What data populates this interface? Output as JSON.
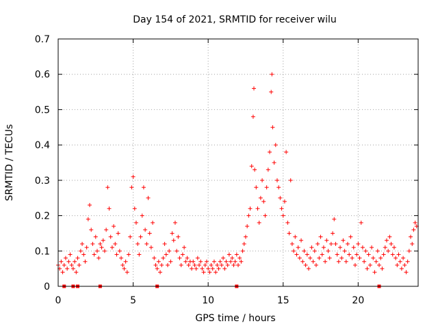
{
  "chart_data": {
    "type": "scatter",
    "title": "Day 154 of 2021, SRMTID for receiver wilu",
    "xlabel": "GPS time / hours",
    "ylabel": "SRMTID / TECUs",
    "xlim": [
      0,
      24
    ],
    "ylim": [
      0,
      0.7
    ],
    "xticks": [
      0,
      5,
      10,
      15,
      20
    ],
    "xtick_labels": [
      "0",
      "5",
      "10",
      "15",
      "20"
    ],
    "yticks": [
      0,
      0.1,
      0.2,
      0.3,
      0.4,
      0.5,
      0.6,
      0.7
    ],
    "ytick_labels": [
      "0",
      "0.1",
      "0.2",
      "0.3",
      "0.4",
      "0.5",
      "0.6",
      "0.7"
    ],
    "grid": true,
    "marker": "plus",
    "color": "#ff0000",
    "series": [
      {
        "name": "SRMTID",
        "points": [
          [
            0.0,
            0.06
          ],
          [
            0.1,
            0.05
          ],
          [
            0.2,
            0.07
          ],
          [
            0.3,
            0.04
          ],
          [
            0.4,
            0.06
          ],
          [
            0.5,
            0.08
          ],
          [
            0.6,
            0.05
          ],
          [
            0.7,
            0.07
          ],
          [
            0.8,
            0.09
          ],
          [
            0.9,
            0.06
          ],
          [
            1.0,
            0.05
          ],
          [
            1.1,
            0.07
          ],
          [
            1.2,
            0.04
          ],
          [
            1.3,
            0.08
          ],
          [
            1.4,
            0.06
          ],
          [
            1.5,
            0.1
          ],
          [
            1.6,
            0.12
          ],
          [
            1.7,
            0.09
          ],
          [
            1.8,
            0.07
          ],
          [
            1.9,
            0.11
          ],
          [
            2.0,
            0.19
          ],
          [
            2.1,
            0.23
          ],
          [
            2.2,
            0.16
          ],
          [
            2.3,
            0.12
          ],
          [
            2.4,
            0.09
          ],
          [
            2.5,
            0.14
          ],
          [
            2.6,
            0.1
          ],
          [
            2.7,
            0.08
          ],
          [
            2.8,
            0.12
          ],
          [
            2.9,
            0.11
          ],
          [
            3.0,
            0.13
          ],
          [
            3.1,
            0.1
          ],
          [
            3.2,
            0.16
          ],
          [
            3.3,
            0.28
          ],
          [
            3.4,
            0.22
          ],
          [
            3.5,
            0.14
          ],
          [
            3.6,
            0.11
          ],
          [
            3.7,
            0.17
          ],
          [
            3.8,
            0.12
          ],
          [
            3.9,
            0.09
          ],
          [
            4.0,
            0.15
          ],
          [
            4.1,
            0.1
          ],
          [
            4.2,
            0.08
          ],
          [
            4.3,
            0.06
          ],
          [
            4.4,
            0.05
          ],
          [
            4.5,
            0.07
          ],
          [
            4.6,
            0.04
          ],
          [
            4.7,
            0.09
          ],
          [
            4.8,
            0.14
          ],
          [
            4.9,
            0.28
          ],
          [
            5.0,
            0.31
          ],
          [
            5.1,
            0.22
          ],
          [
            5.2,
            0.18
          ],
          [
            5.3,
            0.12
          ],
          [
            5.4,
            0.09
          ],
          [
            5.5,
            0.14
          ],
          [
            5.6,
            0.2
          ],
          [
            5.7,
            0.28
          ],
          [
            5.8,
            0.16
          ],
          [
            5.9,
            0.12
          ],
          [
            6.0,
            0.25
          ],
          [
            6.1,
            0.15
          ],
          [
            6.2,
            0.11
          ],
          [
            6.3,
            0.18
          ],
          [
            6.4,
            0.08
          ],
          [
            6.5,
            0.06
          ],
          [
            6.6,
            0.05
          ],
          [
            6.7,
            0.07
          ],
          [
            6.8,
            0.04
          ],
          [
            6.9,
            0.06
          ],
          [
            7.0,
            0.08
          ],
          [
            7.1,
            0.12
          ],
          [
            7.2,
            0.09
          ],
          [
            7.3,
            0.06
          ],
          [
            7.4,
            0.1
          ],
          [
            7.5,
            0.07
          ],
          [
            7.6,
            0.15
          ],
          [
            7.7,
            0.13
          ],
          [
            7.8,
            0.18
          ],
          [
            7.9,
            0.1
          ],
          [
            8.0,
            0.14
          ],
          [
            8.1,
            0.08
          ],
          [
            8.2,
            0.06
          ],
          [
            8.3,
            0.09
          ],
          [
            8.4,
            0.11
          ],
          [
            8.5,
            0.07
          ],
          [
            8.6,
            0.08
          ],
          [
            8.7,
            0.06
          ],
          [
            8.8,
            0.07
          ],
          [
            8.9,
            0.05
          ],
          [
            9.0,
            0.07
          ],
          [
            9.1,
            0.06
          ],
          [
            9.2,
            0.05
          ],
          [
            9.3,
            0.08
          ],
          [
            9.4,
            0.06
          ],
          [
            9.5,
            0.07
          ],
          [
            9.6,
            0.05
          ],
          [
            9.7,
            0.04
          ],
          [
            9.8,
            0.06
          ],
          [
            9.9,
            0.07
          ],
          [
            10.0,
            0.05
          ],
          [
            10.1,
            0.04
          ],
          [
            10.2,
            0.06
          ],
          [
            10.3,
            0.05
          ],
          [
            10.4,
            0.07
          ],
          [
            10.5,
            0.04
          ],
          [
            10.6,
            0.06
          ],
          [
            10.7,
            0.05
          ],
          [
            10.8,
            0.07
          ],
          [
            10.9,
            0.06
          ],
          [
            11.0,
            0.08
          ],
          [
            11.1,
            0.05
          ],
          [
            11.2,
            0.07
          ],
          [
            11.3,
            0.06
          ],
          [
            11.4,
            0.09
          ],
          [
            11.5,
            0.07
          ],
          [
            11.6,
            0.08
          ],
          [
            11.7,
            0.06
          ],
          [
            11.8,
            0.07
          ],
          [
            11.9,
            0.09
          ],
          [
            12.0,
            0.06
          ],
          [
            12.1,
            0.08
          ],
          [
            12.2,
            0.07
          ],
          [
            12.3,
            0.1
          ],
          [
            12.4,
            0.12
          ],
          [
            12.5,
            0.14
          ],
          [
            12.6,
            0.17
          ],
          [
            12.7,
            0.2
          ],
          [
            12.8,
            0.22
          ],
          [
            12.9,
            0.34
          ],
          [
            13.0,
            0.48
          ],
          [
            13.05,
            0.56
          ],
          [
            13.1,
            0.33
          ],
          [
            13.2,
            0.28
          ],
          [
            13.3,
            0.22
          ],
          [
            13.4,
            0.18
          ],
          [
            13.5,
            0.25
          ],
          [
            13.6,
            0.3
          ],
          [
            13.7,
            0.24
          ],
          [
            13.8,
            0.2
          ],
          [
            13.9,
            0.28
          ],
          [
            14.0,
            0.33
          ],
          [
            14.1,
            0.38
          ],
          [
            14.2,
            0.55
          ],
          [
            14.25,
            0.6
          ],
          [
            14.3,
            0.45
          ],
          [
            14.4,
            0.35
          ],
          [
            14.5,
            0.4
          ],
          [
            14.6,
            0.3
          ],
          [
            14.7,
            0.28
          ],
          [
            14.8,
            0.25
          ],
          [
            14.9,
            0.22
          ],
          [
            15.0,
            0.2
          ],
          [
            15.1,
            0.24
          ],
          [
            15.2,
            0.38
          ],
          [
            15.3,
            0.18
          ],
          [
            15.4,
            0.15
          ],
          [
            15.5,
            0.3
          ],
          [
            15.6,
            0.12
          ],
          [
            15.7,
            0.1
          ],
          [
            15.8,
            0.14
          ],
          [
            15.9,
            0.09
          ],
          [
            16.0,
            0.11
          ],
          [
            16.1,
            0.08
          ],
          [
            16.2,
            0.13
          ],
          [
            16.3,
            0.07
          ],
          [
            16.4,
            0.1
          ],
          [
            16.5,
            0.06
          ],
          [
            16.6,
            0.09
          ],
          [
            16.7,
            0.05
          ],
          [
            16.8,
            0.08
          ],
          [
            16.9,
            0.11
          ],
          [
            17.0,
            0.07
          ],
          [
            17.1,
            0.1
          ],
          [
            17.2,
            0.06
          ],
          [
            17.3,
            0.12
          ],
          [
            17.4,
            0.08
          ],
          [
            17.5,
            0.14
          ],
          [
            17.6,
            0.09
          ],
          [
            17.7,
            0.11
          ],
          [
            17.8,
            0.07
          ],
          [
            17.9,
            0.13
          ],
          [
            18.0,
            0.1
          ],
          [
            18.1,
            0.08
          ],
          [
            18.2,
            0.12
          ],
          [
            18.3,
            0.15
          ],
          [
            18.4,
            0.19
          ],
          [
            18.5,
            0.12
          ],
          [
            18.6,
            0.09
          ],
          [
            18.7,
            0.07
          ],
          [
            18.8,
            0.11
          ],
          [
            18.9,
            0.08
          ],
          [
            19.0,
            0.13
          ],
          [
            19.1,
            0.1
          ],
          [
            19.2,
            0.07
          ],
          [
            19.3,
            0.12
          ],
          [
            19.4,
            0.09
          ],
          [
            19.5,
            0.14
          ],
          [
            19.6,
            0.08
          ],
          [
            19.7,
            0.11
          ],
          [
            19.8,
            0.06
          ],
          [
            19.9,
            0.09
          ],
          [
            20.0,
            0.12
          ],
          [
            20.1,
            0.08
          ],
          [
            20.2,
            0.18
          ],
          [
            20.3,
            0.11
          ],
          [
            20.4,
            0.07
          ],
          [
            20.5,
            0.1
          ],
          [
            20.6,
            0.05
          ],
          [
            20.7,
            0.09
          ],
          [
            20.8,
            0.06
          ],
          [
            20.9,
            0.11
          ],
          [
            21.0,
            0.08
          ],
          [
            21.1,
            0.04
          ],
          [
            21.2,
            0.07
          ],
          [
            21.3,
            0.1
          ],
          [
            21.4,
            0.06
          ],
          [
            21.5,
            0.08
          ],
          [
            21.6,
            0.05
          ],
          [
            21.7,
            0.09
          ],
          [
            21.8,
            0.11
          ],
          [
            21.9,
            0.13
          ],
          [
            22.0,
            0.1
          ],
          [
            22.1,
            0.14
          ],
          [
            22.2,
            0.12
          ],
          [
            22.3,
            0.09
          ],
          [
            22.4,
            0.11
          ],
          [
            22.5,
            0.08
          ],
          [
            22.6,
            0.06
          ],
          [
            22.7,
            0.09
          ],
          [
            22.8,
            0.07
          ],
          [
            22.9,
            0.05
          ],
          [
            23.0,
            0.08
          ],
          [
            23.1,
            0.06
          ],
          [
            23.2,
            0.04
          ],
          [
            23.3,
            0.07
          ],
          [
            23.4,
            0.1
          ],
          [
            23.5,
            0.14
          ],
          [
            23.6,
            0.12
          ],
          [
            23.7,
            0.16
          ],
          [
            23.8,
            0.18
          ],
          [
            23.9,
            0.17
          ]
        ]
      }
    ],
    "gap_markers_x": [
      0.4,
      1.0,
      1.3,
      2.8,
      6.6,
      11.9,
      21.4
    ]
  }
}
